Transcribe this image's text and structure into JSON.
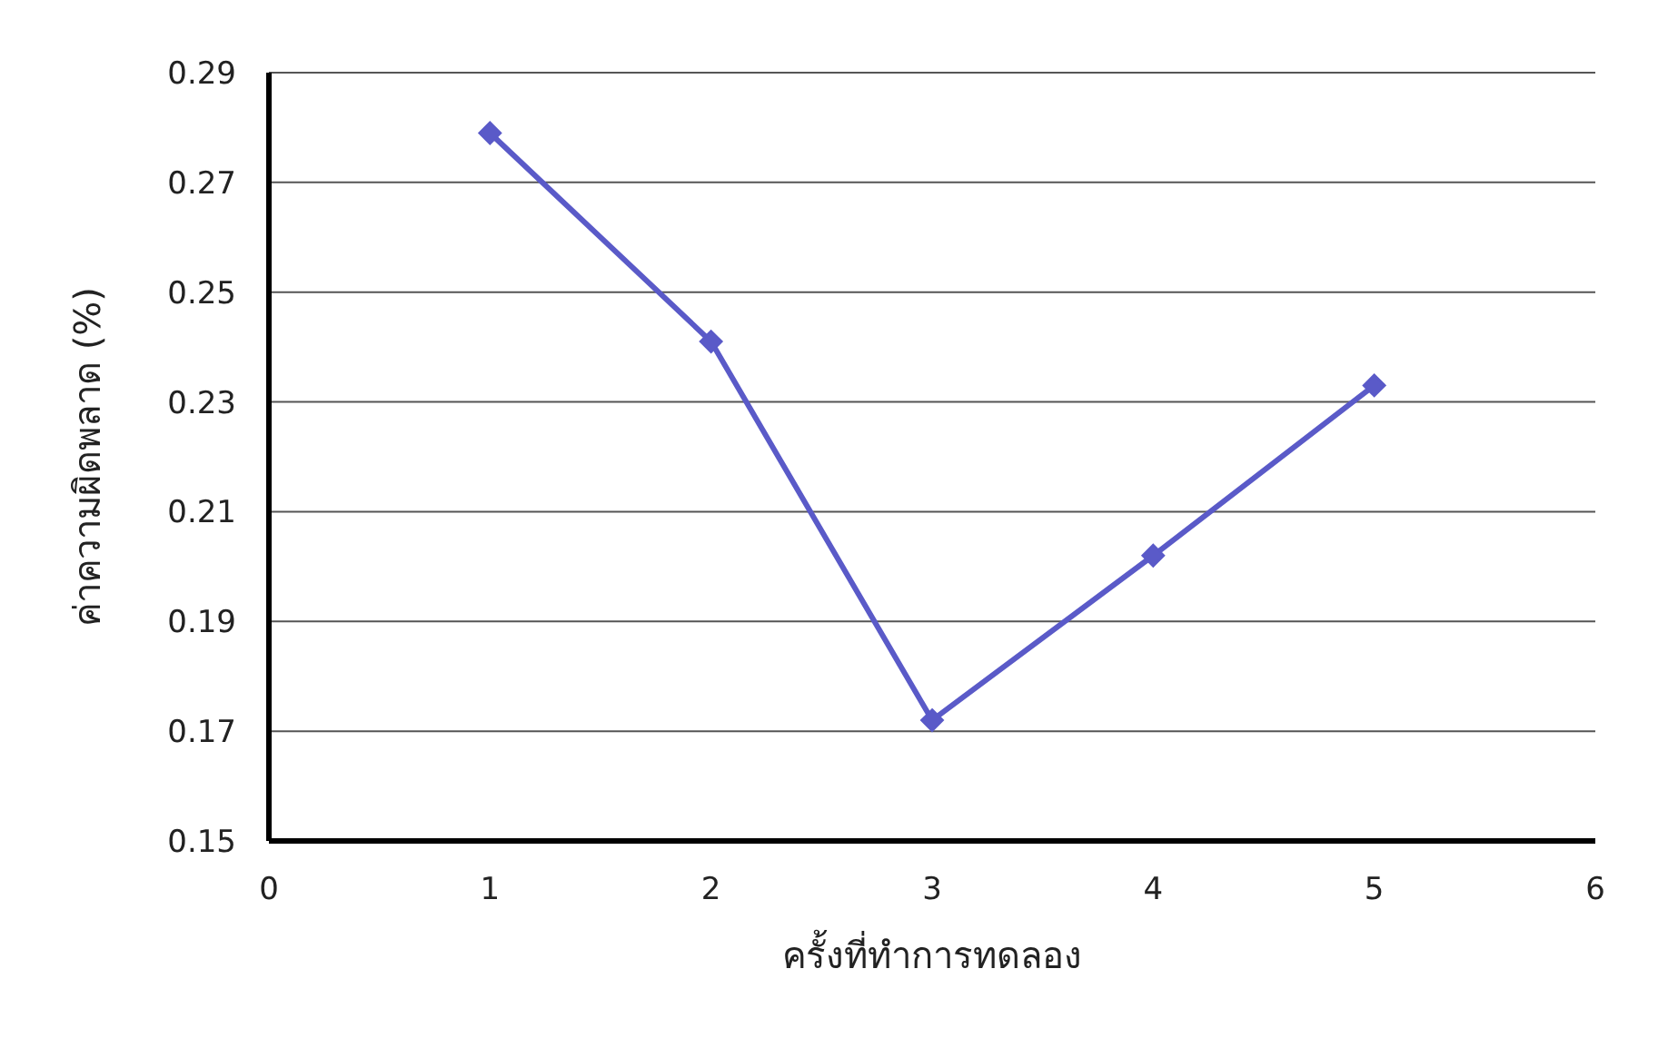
{
  "chart_data": {
    "type": "line",
    "xlabel": "ครั้งที่ทำการทดลอง",
    "ylabel": "ค่าความผิดพลาด (%)",
    "x": [
      1,
      2,
      3,
      4,
      5
    ],
    "series": [
      {
        "color": "#5a5ac8",
        "values": [
          0.279,
          0.241,
          0.172,
          0.202,
          0.233
        ]
      }
    ],
    "xlim": [
      0,
      6
    ],
    "xticks": [
      0,
      1,
      2,
      3,
      4,
      5,
      6
    ],
    "ylim": [
      0.15,
      0.29
    ],
    "yticks": [
      0.15,
      0.17,
      0.19,
      0.21,
      0.23,
      0.25,
      0.27,
      0.29
    ],
    "grid": "y",
    "marker": "diamond",
    "legend": false
  }
}
